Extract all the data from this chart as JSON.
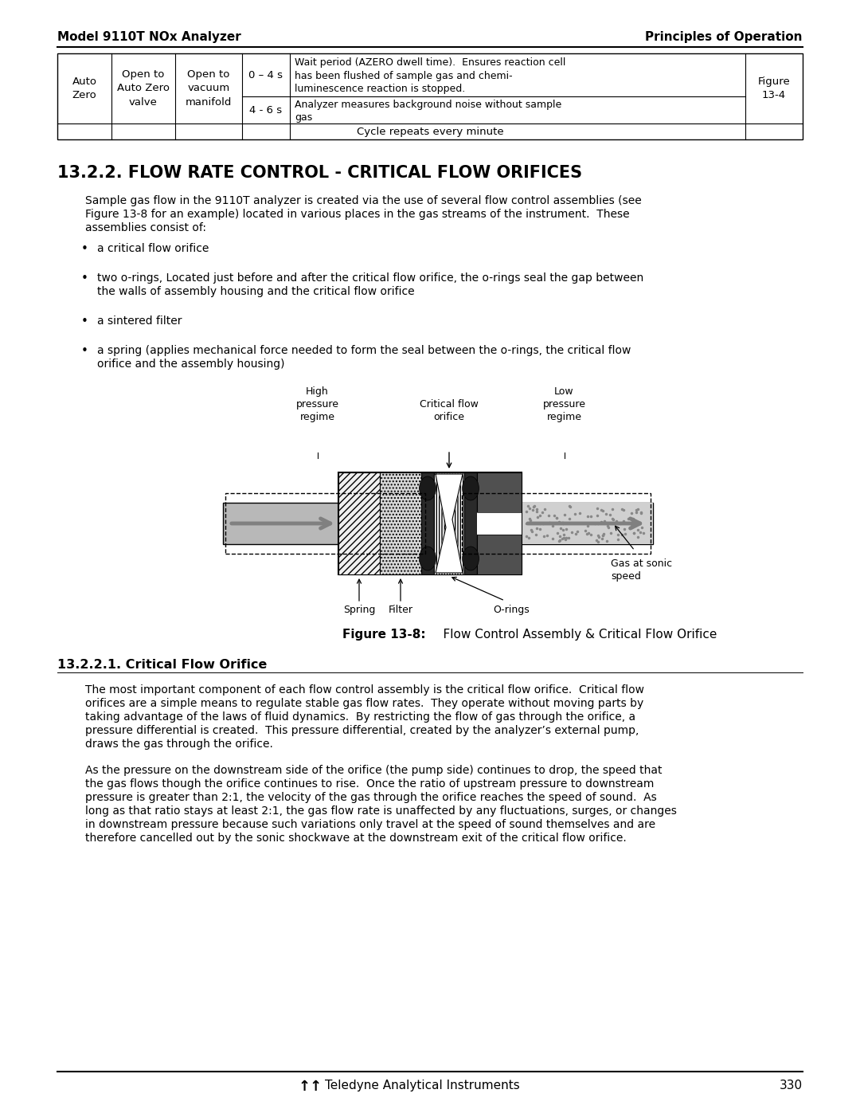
{
  "page_title_left": "Model 9110T NOx Analyzer",
  "page_title_right": "Principles of Operation",
  "section_title": "13.2.2. FLOW RATE CONTROL - CRITICAL FLOW ORIFICES",
  "intro_text": "Sample gas flow in the 9110T analyzer is created via the use of several flow control assemblies (see Figure 13-8 for an example) located in various places in the gas streams of the instrument.  These assemblies consist of:",
  "bullet_points": [
    "a critical flow orifice",
    "two o-rings, Located just before and after the critical flow orifice, the o-rings seal the gap between the walls of assembly housing and the critical flow orifice",
    "a sintered filter",
    "a spring (applies mechanical force needed to form the seal between the o-rings, the critical flow orifice and the assembly housing)"
  ],
  "figure_caption_bold": "Figure 13-8:",
  "figure_caption_normal": "    Flow Control Assembly & Critical Flow Orifice",
  "subsection_title": "13.2.2.1. Critical Flow Orifice",
  "para1": "The most important component of each flow control assembly is the critical flow orifice.  Critical flow orifices are a simple means to regulate stable gas flow rates.  They operate without moving parts by taking advantage of the laws of fluid dynamics.  By restricting the flow of gas through the orifice, a pressure differential is created.  This pressure differential, created by the analyzer’s external pump, draws the gas through the orifice.",
  "para2": "As the pressure on the downstream side of the orifice (the pump side) continues to drop, the speed that the gas flows though the orifice continues to rise.  Once the ratio of upstream pressure to downstream pressure is greater than 2:1, the velocity of the gas through the orifice reaches the speed of sound.  As long as that ratio stays at least 2:1, the gas flow rate is unaffected by any fluctuations, surges, or changes in downstream pressure because such variations only travel at the speed of sound themselves and are therefore cancelled out by the sonic shockwave at the downstream exit of the critical flow orifice.",
  "footer_text": "Teledyne Analytical Instruments",
  "page_number": "330",
  "table_data": {
    "col1": "Auto\nZero",
    "col2": "Open to\nAuto Zero\nvalve",
    "col3": "Open to\nvacuum\nmanifold",
    "row1_time": "0 – 4 s",
    "row1_desc": "Wait period (AZERO dwell time).  Ensures reaction cell has been flushed of sample gas and chemi-luminescence reaction is stopped.",
    "row2_time": "4 - 6 s",
    "row2_desc": "Analyzer measures background noise without sample gas",
    "bottom_row": "Cycle repeats every minute",
    "right_col": "Figure\n13-4"
  },
  "bg_color": "#ffffff",
  "text_color": "#000000"
}
